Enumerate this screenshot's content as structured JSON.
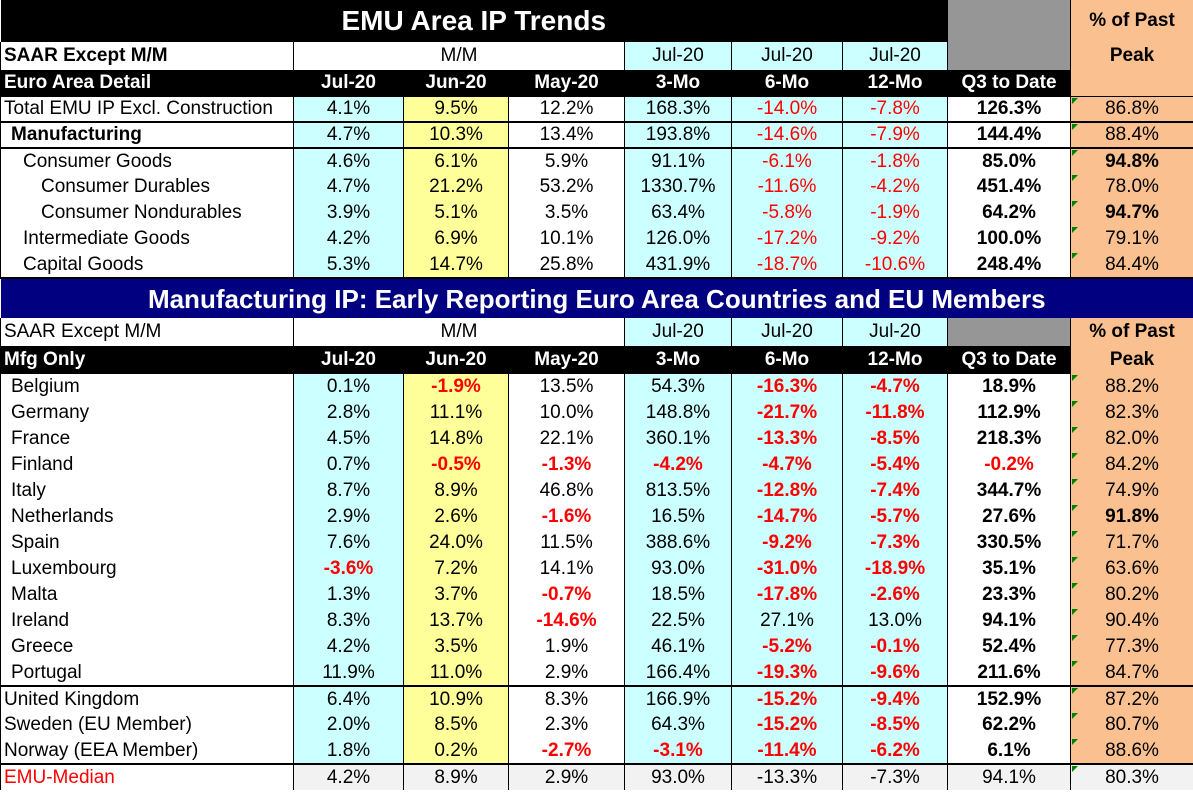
{
  "top": {
    "title": "EMU Area IP Trends",
    "peak_label_1": "% of Past",
    "peak_label_2": "Peak",
    "saar_label": "SAAR Except M/M",
    "mm_label": "M/M",
    "jul_a": "Jul-20",
    "jul_b": "Jul-20",
    "jul_c": "Jul-20",
    "detail_label": "Euro Area Detail",
    "col_jul": "Jul-20",
    "col_jun": "Jun-20",
    "col_may": "May-20",
    "col_3mo": "3-Mo",
    "col_6mo": "6-Mo",
    "col_12mo": "12-Mo",
    "col_q3": "Q3 to Date",
    "rows": [
      {
        "label": "Total EMU IP Excl. Construction",
        "jul": "4.1%",
        "jun": "9.5%",
        "may": "12.2%",
        "m3": "168.3%",
        "m6": "-14.0%",
        "m12": "-7.8%",
        "q3": "126.3%",
        "peak": "86.8%"
      },
      {
        "label": "Manufacturing",
        "jul": "4.7%",
        "jun": "10.3%",
        "may": "13.4%",
        "m3": "193.8%",
        "m6": "-14.6%",
        "m12": "-7.9%",
        "q3": "144.4%",
        "peak": "88.4%"
      },
      {
        "label": "Consumer Goods",
        "jul": "4.6%",
        "jun": "6.1%",
        "may": "5.9%",
        "m3": "91.1%",
        "m6": "-6.1%",
        "m12": "-1.8%",
        "q3": "85.0%",
        "peak": "94.8%"
      },
      {
        "label": "Consumer Durables",
        "jul": "4.7%",
        "jun": "21.2%",
        "may": "53.2%",
        "m3": "1330.7%",
        "m6": "-11.6%",
        "m12": "-4.2%",
        "q3": "451.4%",
        "peak": "78.0%"
      },
      {
        "label": "Consumer Nondurables",
        "jul": "3.9%",
        "jun": "5.1%",
        "may": "3.5%",
        "m3": "63.4%",
        "m6": "-5.8%",
        "m12": "-1.9%",
        "q3": "64.2%",
        "peak": "94.7%"
      },
      {
        "label": "Intermediate Goods",
        "jul": "4.2%",
        "jun": "6.9%",
        "may": "10.1%",
        "m3": "126.0%",
        "m6": "-17.2%",
        "m12": "-9.2%",
        "q3": "100.0%",
        "peak": "79.1%"
      },
      {
        "label": "Capital Goods",
        "jul": "5.3%",
        "jun": "14.7%",
        "may": "25.8%",
        "m3": "431.9%",
        "m6": "-18.7%",
        "m12": "-10.6%",
        "q3": "248.4%",
        "peak": "84.4%"
      }
    ]
  },
  "bottom": {
    "title": "Manufacturing IP: Early Reporting Euro Area Countries and EU Members",
    "saar_label": "SAAR Except M/M",
    "mm_label": "M/M",
    "jul_a": "Jul-20",
    "jul_b": "Jul-20",
    "jul_c": "Jul-20",
    "peak_label_1": "% of Past",
    "peak_label_2": "Peak",
    "mfg_label": "Mfg Only",
    "col_jul": "Jul-20",
    "col_jun": "Jun-20",
    "col_may": "May-20",
    "col_3mo": "3-Mo",
    "col_6mo": "6-Mo",
    "col_12mo": "12-Mo",
    "col_q3": "Q3 to Date",
    "rows": [
      {
        "label": "Belgium",
        "jul": "0.1%",
        "jun": "-1.9%",
        "may": "13.5%",
        "m3": "54.3%",
        "m6": "-16.3%",
        "m12": "-4.7%",
        "q3": "18.9%",
        "peak": "88.2%"
      },
      {
        "label": "Germany",
        "jul": "2.8%",
        "jun": "11.1%",
        "may": "10.0%",
        "m3": "148.8%",
        "m6": "-21.7%",
        "m12": "-11.8%",
        "q3": "112.9%",
        "peak": "82.3%"
      },
      {
        "label": "France",
        "jul": "4.5%",
        "jun": "14.8%",
        "may": "22.1%",
        "m3": "360.1%",
        "m6": "-13.3%",
        "m12": "-8.5%",
        "q3": "218.3%",
        "peak": "82.0%"
      },
      {
        "label": "Finland",
        "jul": "0.7%",
        "jun": "-0.5%",
        "may": "-1.3%",
        "m3": "-4.2%",
        "m6": "-4.7%",
        "m12": "-5.4%",
        "q3": "-0.2%",
        "peak": "84.2%"
      },
      {
        "label": "Italy",
        "jul": "8.7%",
        "jun": "8.9%",
        "may": "46.8%",
        "m3": "813.5%",
        "m6": "-12.8%",
        "m12": "-7.4%",
        "q3": "344.7%",
        "peak": "74.9%"
      },
      {
        "label": "Netherlands",
        "jul": "2.9%",
        "jun": "2.6%",
        "may": "-1.6%",
        "m3": "16.5%",
        "m6": "-14.7%",
        "m12": "-5.7%",
        "q3": "27.6%",
        "peak": "91.8%"
      },
      {
        "label": "Spain",
        "jul": "7.6%",
        "jun": "24.0%",
        "may": "11.5%",
        "m3": "388.6%",
        "m6": "-9.2%",
        "m12": "-7.3%",
        "q3": "330.5%",
        "peak": "71.7%"
      },
      {
        "label": "Luxembourg",
        "jul": "-3.6%",
        "jun": "7.2%",
        "may": "14.1%",
        "m3": "93.0%",
        "m6": "-31.0%",
        "m12": "-18.9%",
        "q3": "35.1%",
        "peak": "63.6%"
      },
      {
        "label": "Malta",
        "jul": "1.3%",
        "jun": "3.7%",
        "may": "-0.7%",
        "m3": "18.5%",
        "m6": "-17.8%",
        "m12": "-2.6%",
        "q3": "23.3%",
        "peak": "80.2%"
      },
      {
        "label": "Ireland",
        "jul": "8.3%",
        "jun": "13.7%",
        "may": "-14.6%",
        "m3": "22.5%",
        "m6": "27.1%",
        "m12": "13.0%",
        "q3": "94.1%",
        "peak": "90.4%"
      },
      {
        "label": "Greece",
        "jul": "4.2%",
        "jun": "3.5%",
        "may": "1.9%",
        "m3": "46.1%",
        "m6": "-5.2%",
        "m12": "-0.1%",
        "q3": "52.4%",
        "peak": "77.3%"
      },
      {
        "label": "Portugal",
        "jul": "11.9%",
        "jun": "11.0%",
        "may": "2.9%",
        "m3": "166.4%",
        "m6": "-19.3%",
        "m12": "-9.6%",
        "q3": "211.6%",
        "peak": "84.7%"
      },
      {
        "label": "United Kingdom",
        "jul": "6.4%",
        "jun": "10.9%",
        "may": "8.3%",
        "m3": "166.9%",
        "m6": "-15.2%",
        "m12": "-9.4%",
        "q3": "152.9%",
        "peak": "87.2%"
      },
      {
        "label": "Sweden (EU Member)",
        "jul": "2.0%",
        "jun": "8.5%",
        "may": "2.3%",
        "m3": "64.3%",
        "m6": "-15.2%",
        "m12": "-8.5%",
        "q3": "62.2%",
        "peak": "80.7%"
      },
      {
        "label": "Norway (EEA Member)",
        "jul": "1.8%",
        "jun": "0.2%",
        "may": "-2.7%",
        "m3": "-3.1%",
        "m6": "-11.4%",
        "m12": "-6.2%",
        "q3": "6.1%",
        "peak": "88.6%"
      },
      {
        "label": "EMU-Median",
        "jul": "4.2%",
        "jun": "8.9%",
        "may": "2.9%",
        "m3": "93.0%",
        "m6": "-13.3%",
        "m12": "-7.3%",
        "q3": "94.1%",
        "peak": "80.3%"
      }
    ]
  }
}
